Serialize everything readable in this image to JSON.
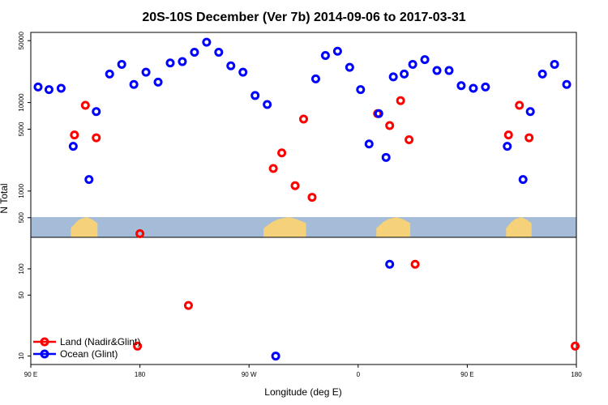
{
  "chart_data": {
    "type": "scatter",
    "title": "20S-10S December (Ver 7b)   2014-09-06 to 2017-03-31",
    "xlabel": "Longitude (deg E)",
    "ylabel": "N Total",
    "x_ticks": [
      {
        "value": 90,
        "label": "90 E"
      },
      {
        "value": 180,
        "label": "180"
      },
      {
        "value": 270,
        "label": "90 W"
      },
      {
        "value": 360,
        "label": "0"
      },
      {
        "value": 450,
        "label": "90 E"
      },
      {
        "value": 540,
        "label": "180"
      }
    ],
    "xlim": [
      90,
      540
    ],
    "log_scale_y": true,
    "upper_panel": {
      "ylim": [
        300,
        62000
      ],
      "y_ticks": [
        {
          "value": 500,
          "label": "500"
        },
        {
          "value": 1000,
          "label": "1000"
        },
        {
          "value": 5000,
          "label": "5000"
        },
        {
          "value": 10000,
          "label": "10000"
        },
        {
          "value": 50000,
          "label": "50000"
        }
      ],
      "series": [
        {
          "name": "Land (Nadir&Glint)",
          "color": "#ff0000",
          "points": [
            [
              126,
              4300
            ],
            [
              135,
              9300
            ],
            [
              144,
              4000
            ],
            [
              180,
              330
            ],
            [
              290,
              1800
            ],
            [
              297,
              2700
            ],
            [
              308,
              1150
            ],
            [
              315,
              6500
            ],
            [
              322,
              850
            ],
            [
              376,
              7500
            ],
            [
              386,
              5500
            ],
            [
              395,
              10500
            ],
            [
              402,
              3800
            ],
            [
              484,
              4300
            ],
            [
              493,
              9300
            ],
            [
              501,
              4000
            ]
          ]
        },
        {
          "name": "Ocean (Glint)",
          "color": "#0000ff",
          "points": [
            [
              96,
              15000
            ],
            [
              105,
              14000
            ],
            [
              115,
              14500
            ],
            [
              125,
              3200
            ],
            [
              138,
              1350
            ],
            [
              144,
              7900
            ],
            [
              155,
              21000
            ],
            [
              165,
              27000
            ],
            [
              175,
              16000
            ],
            [
              185,
              22000
            ],
            [
              195,
              17000
            ],
            [
              205,
              28000
            ],
            [
              215,
              29000
            ],
            [
              225,
              37000
            ],
            [
              235,
              48000
            ],
            [
              245,
              37000
            ],
            [
              255,
              26000
            ],
            [
              265,
              22000
            ],
            [
              275,
              12000
            ],
            [
              285,
              9500
            ],
            [
              325,
              18500
            ],
            [
              333,
              34000
            ],
            [
              343,
              38000
            ],
            [
              353,
              25000
            ],
            [
              362,
              14000
            ],
            [
              369,
              3400
            ],
            [
              377,
              7500
            ],
            [
              383,
              2400
            ],
            [
              389,
              19500
            ],
            [
              398,
              21000
            ],
            [
              405,
              27000
            ],
            [
              415,
              30500
            ],
            [
              425,
              23000
            ],
            [
              435,
              23000
            ],
            [
              445,
              15500
            ],
            [
              455,
              14500
            ],
            [
              465,
              15000
            ],
            [
              483,
              3200
            ],
            [
              496,
              1350
            ],
            [
              502,
              7900
            ],
            [
              512,
              21000
            ],
            [
              522,
              27000
            ],
            [
              532,
              16000
            ]
          ]
        }
      ]
    },
    "lower_panel": {
      "ylim": [
        8,
        230
      ],
      "y_ticks": [
        {
          "value": 10,
          "label": "10"
        },
        {
          "value": 50,
          "label": "50"
        },
        {
          "value": 100,
          "label": "100"
        }
      ],
      "series": [
        {
          "name": "Land (Nadir&Glint)",
          "color": "#ff0000",
          "points": [
            [
              178,
              13
            ],
            [
              220,
              38
            ],
            [
              407,
              113
            ],
            [
              539,
              13
            ]
          ]
        },
        {
          "name": "Ocean (Glint)",
          "color": "#0000ff",
          "points": [
            [
              292,
              10
            ],
            [
              386,
              113
            ]
          ]
        }
      ]
    },
    "legend": {
      "placement": "bottom-left",
      "entries": [
        {
          "label": "Land (Nadir&Glint)",
          "color": "#ff0000"
        },
        {
          "label": "Ocean (Glint)",
          "color": "#0000ff"
        }
      ]
    },
    "map_strip": {
      "ocean_color": "#a4bcd8",
      "land_color": "#f5d27a",
      "land_spans": [
        [
          123,
          145
        ],
        [
          282,
          317
        ],
        [
          375,
          403
        ],
        [
          482,
          503
        ]
      ]
    }
  }
}
